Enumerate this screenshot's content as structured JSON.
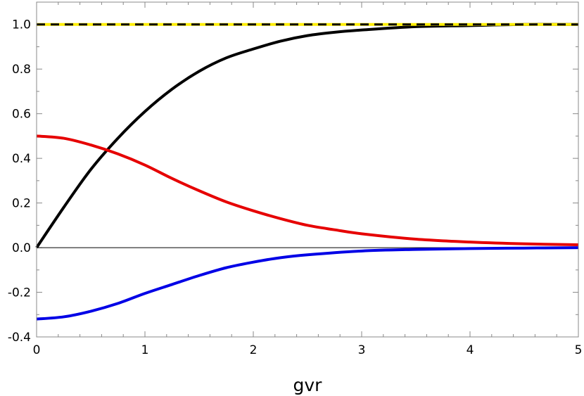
{
  "chart_data": {
    "type": "line",
    "title": "",
    "xlabel": "gvr",
    "ylabel": "",
    "xlim": [
      0,
      5
    ],
    "ylim": [
      -0.4,
      1.1
    ],
    "x_ticks": [
      0,
      1,
      2,
      3,
      4,
      5
    ],
    "x_tick_labels": [
      "0",
      "1",
      "2",
      "3",
      "4",
      "5"
    ],
    "y_ticks": [
      -0.4,
      -0.2,
      0.0,
      0.2,
      0.4,
      0.6,
      0.8,
      1.0
    ],
    "y_tick_labels": [
      "-0.4",
      "-0.2",
      "0.0",
      "0.2",
      "0.4",
      "0.6",
      "0.8",
      "1.0"
    ],
    "grid": false,
    "frame": true,
    "zero_line": true,
    "series": [
      {
        "color": "#000000",
        "style": "solid",
        "x": [
          0,
          0.25,
          0.5,
          0.75,
          1.0,
          1.25,
          1.5,
          1.75,
          2.0,
          2.25,
          2.5,
          2.75,
          3.0,
          3.5,
          4.0,
          4.5,
          5.0
        ],
        "y": [
          0.0,
          0.18,
          0.35,
          0.49,
          0.61,
          0.71,
          0.79,
          0.85,
          0.89,
          0.925,
          0.95,
          0.965,
          0.975,
          0.99,
          0.995,
          1.0,
          1.0
        ]
      },
      {
        "color": "#e60000",
        "style": "solid",
        "x": [
          0,
          0.25,
          0.5,
          0.75,
          1.0,
          1.25,
          1.5,
          1.75,
          2.0,
          2.25,
          2.5,
          2.75,
          3.0,
          3.5,
          4.0,
          4.5,
          5.0
        ],
        "y": [
          0.5,
          0.49,
          0.46,
          0.42,
          0.37,
          0.31,
          0.255,
          0.205,
          0.165,
          0.13,
          0.1,
          0.08,
          0.062,
          0.038,
          0.025,
          0.017,
          0.013
        ]
      },
      {
        "color": "#0000e6",
        "style": "solid",
        "x": [
          0,
          0.25,
          0.5,
          0.75,
          1.0,
          1.25,
          1.5,
          1.75,
          2.0,
          2.25,
          2.5,
          3.0,
          3.5,
          4.0,
          4.5,
          5.0
        ],
        "y": [
          -0.32,
          -0.31,
          -0.285,
          -0.25,
          -0.205,
          -0.165,
          -0.125,
          -0.09,
          -0.065,
          -0.045,
          -0.032,
          -0.015,
          -0.008,
          -0.004,
          -0.002,
          0.0
        ]
      },
      {
        "color": "#ffee00",
        "style": "solid",
        "x": [
          0,
          5
        ],
        "y": [
          1.0,
          1.0
        ]
      },
      {
        "color": "#000000",
        "style": "dashed",
        "x": [
          0,
          5
        ],
        "y": [
          1.0,
          1.0
        ]
      }
    ]
  }
}
